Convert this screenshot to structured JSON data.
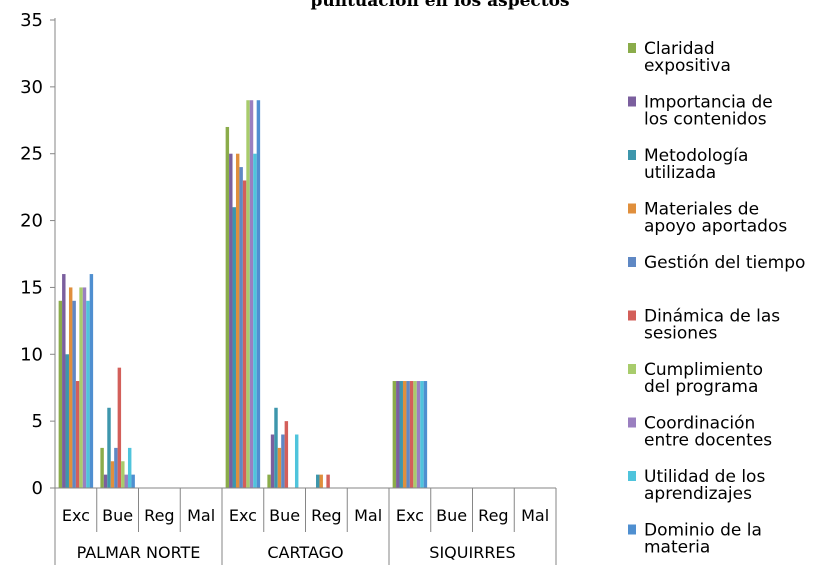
{
  "chart_data": {
    "type": "bar",
    "title": "puntuación en los aspectos",
    "ylim": [
      0,
      35
    ],
    "yticks": [
      0,
      5,
      10,
      15,
      20,
      25,
      30,
      35
    ],
    "grid": false,
    "legend_position": "right",
    "groups": [
      "PALMAR NORTE",
      "CARTAGO",
      "SIQUIRRES"
    ],
    "categories": [
      "Exc",
      "Bue",
      "Reg",
      "Mal",
      "Exc",
      "Bue",
      "Reg",
      "Mal",
      "Exc",
      "Bue",
      "Reg",
      "Mal"
    ],
    "series": [
      {
        "name": "Claridad expositiva",
        "legend_lines": [
          "Claridad",
          "expositiva"
        ],
        "color": "#8aac4a",
        "values": [
          14,
          3,
          0,
          0,
          27,
          1,
          0,
          0,
          8,
          0,
          0,
          0
        ]
      },
      {
        "name": "Importancia de los contenidos",
        "legend_lines": [
          "Importancia de",
          "los contenidos"
        ],
        "color": "#7b5f9e",
        "values": [
          16,
          1,
          0,
          0,
          25,
          4,
          0,
          0,
          8,
          0,
          0,
          0
        ]
      },
      {
        "name": "Metodología utilizada",
        "legend_lines": [
          "Metodología",
          "utilizada"
        ],
        "color": "#3d96ac",
        "values": [
          10,
          6,
          0,
          0,
          21,
          6,
          1,
          0,
          8,
          0,
          0,
          0
        ]
      },
      {
        "name": "Materiales de apoyo aportados",
        "legend_lines": [
          "Materiales de",
          "apoyo aportados"
        ],
        "color": "#e08f3c",
        "values": [
          15,
          2,
          0,
          0,
          25,
          3,
          1,
          0,
          8,
          0,
          0,
          0
        ]
      },
      {
        "name": "Gestión del tiempo",
        "legend_lines": [
          "Gestión del tiempo"
        ],
        "color": "#5f88c4",
        "values": [
          14,
          3,
          0,
          0,
          24,
          4,
          0,
          0,
          8,
          0,
          0,
          0
        ]
      },
      {
        "name": "Dinámica de las sesiones",
        "legend_lines": [
          "Dinámica de las",
          "sesiones"
        ],
        "color": "#d35f5a",
        "values": [
          8,
          9,
          0,
          0,
          23,
          5,
          1,
          0,
          8,
          0,
          0,
          0
        ]
      },
      {
        "name": "Cumplimiento del programa",
        "legend_lines": [
          "Cumplimiento",
          "del programa"
        ],
        "color": "#a8cc6c",
        "values": [
          15,
          2,
          0,
          0,
          29,
          0,
          0,
          0,
          8,
          0,
          0,
          0
        ]
      },
      {
        "name": "Coordinación entre docentes",
        "legend_lines": [
          "Coordinación",
          "entre docentes"
        ],
        "color": "#9a7fc0",
        "values": [
          15,
          1,
          0,
          0,
          29,
          0,
          0,
          0,
          8,
          0,
          0,
          0
        ]
      },
      {
        "name": "Utilidad de los aprendizajes",
        "legend_lines": [
          "Utilidad de los",
          "aprendizajes"
        ],
        "color": "#4fc4dc",
        "values": [
          14,
          3,
          0,
          0,
          25,
          4,
          0,
          0,
          8,
          0,
          0,
          0
        ]
      },
      {
        "name": "Dominio de la materia",
        "legend_lines": [
          "Dominio de la",
          "materia"
        ],
        "color": "#4f8fd0",
        "values": [
          16,
          1,
          0,
          0,
          29,
          0,
          0,
          0,
          8,
          0,
          0,
          0
        ]
      }
    ]
  }
}
